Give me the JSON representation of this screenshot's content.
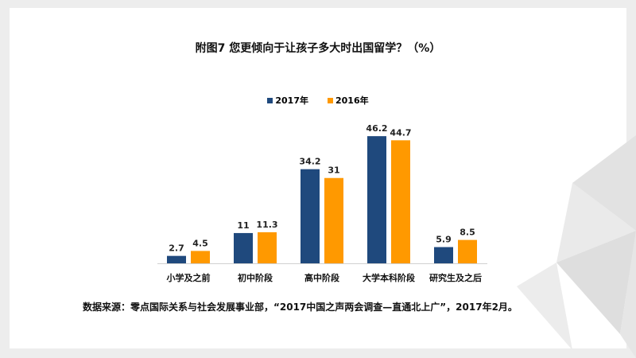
{
  "chart_data": {
    "type": "bar",
    "title": "附图7 您更倾向于让孩子多大时出国留学？（%）",
    "categories": [
      "小学及之前",
      "初中阶段",
      "高中阶段",
      "大学本科阶段",
      "研究生及之后"
    ],
    "series": [
      {
        "name": "2017年",
        "color": "#1f497d",
        "values": [
          2.7,
          11,
          34.2,
          46.2,
          5.9
        ],
        "labels": [
          "2.7",
          "11",
          "34.2",
          "46.2",
          "5.9"
        ]
      },
      {
        "name": "2016年",
        "color": "#ff9900",
        "values": [
          4.5,
          11.3,
          31,
          44.7,
          8.5
        ],
        "labels": [
          "4.5",
          "11.3",
          "31",
          "44.7",
          "8.5"
        ]
      }
    ],
    "xlabel": "",
    "ylabel": "",
    "ylim": [
      0,
      50
    ],
    "grid": false,
    "legend": "top-center"
  },
  "source": "数据来源：零点国际关系与社会发展事业部，“2017中国之声两会调查—直通北上广”，2017年2月。"
}
